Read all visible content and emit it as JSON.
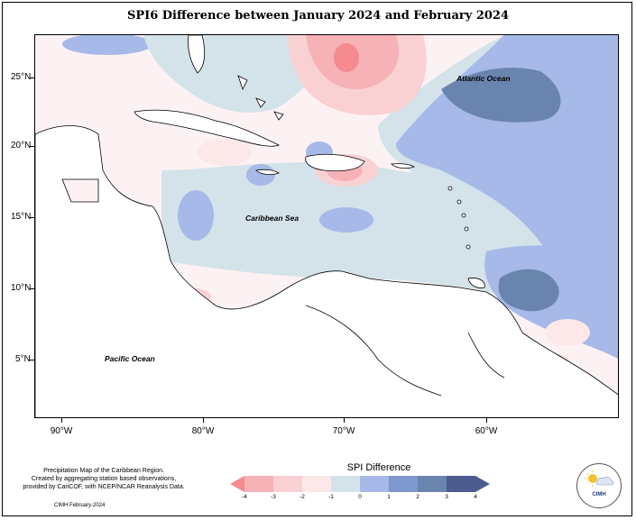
{
  "title": "SPI6 Difference between January 2024 and February 2024",
  "axes": {
    "lat_labels": [
      "25°N",
      "20°N",
      "15°N",
      "10°N",
      "5°N"
    ],
    "lon_labels": [
      "90°W",
      "80°W",
      "70°W",
      "60°W"
    ]
  },
  "map_labels": {
    "atlantic": "Atlantic Ocean",
    "caribbean": "Caribbean Sea",
    "pacific": "Pacific Ocean"
  },
  "credit": {
    "line1": "Precipitation Map of the Caribbean Region.",
    "line2": "Created by aggregating station based observations,",
    "line3": "provided by CariCOF, with NCEP/NCAR Reanalysis Data."
  },
  "date_note": "CIMH February-2024",
  "legend": {
    "title": "SPI Difference",
    "labels": [
      "-4",
      "-3",
      "-2",
      "-1",
      "0",
      "1",
      "2",
      "3",
      "4"
    ],
    "colors": [
      "#f58a8f",
      "#f6b2b6",
      "#f9d1d3",
      "#fce8e9",
      "#d4e3ea",
      "#a6b9e8",
      "#7f97cf",
      "#6a85ad",
      "#4c5c8e"
    ]
  },
  "logo": {
    "text": "CIMH",
    "icon": "sun-cloud-globe-logo-icon"
  }
}
